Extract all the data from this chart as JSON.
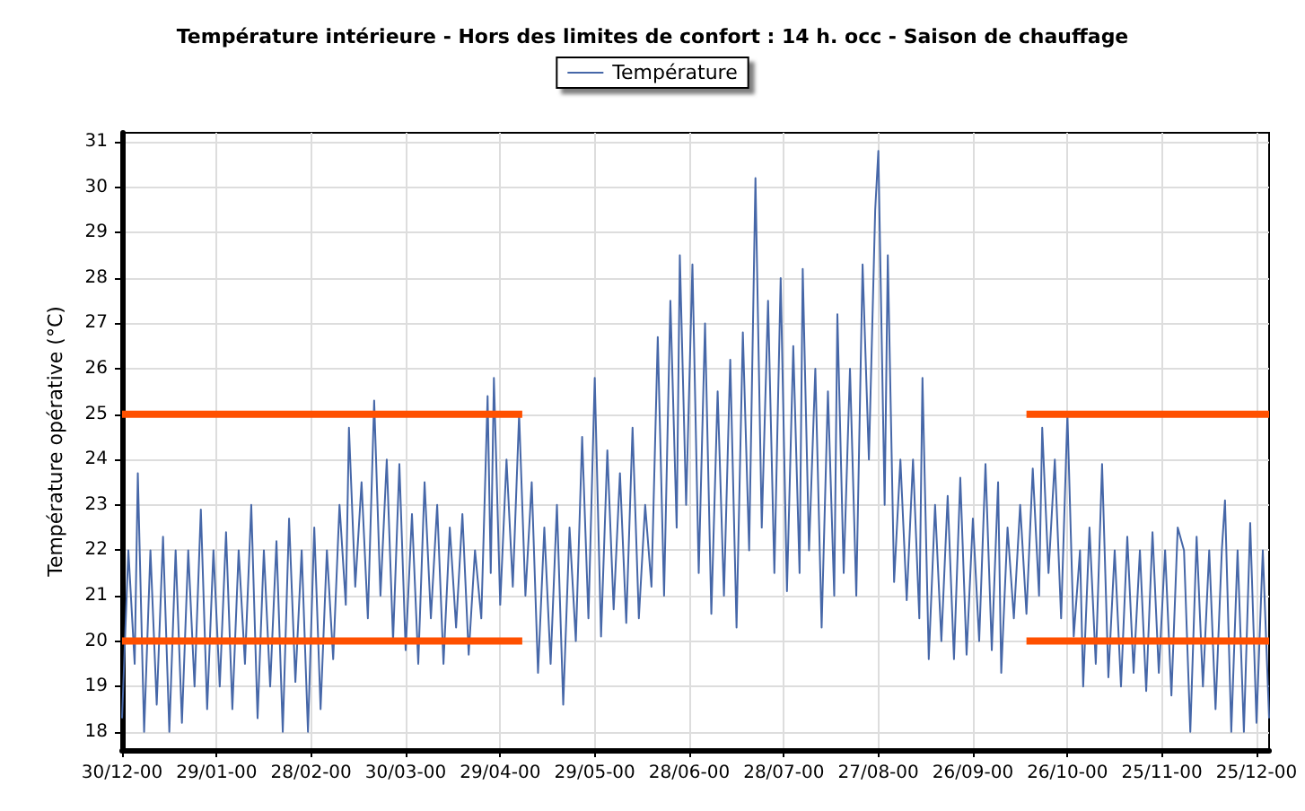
{
  "chart_data": {
    "type": "line",
    "title": "Température intérieure - Hors des limites de confort : 14 h. occ - Saison de chauffage",
    "ylabel": "Température opérative (°C)",
    "xlim": [
      "2000-12-30",
      "2001-12-29"
    ],
    "ylim": [
      17.6,
      31.2
    ],
    "xticks": [
      {
        "value": "2000-12-30",
        "label": "30/12-00"
      },
      {
        "value": "2001-01-29",
        "label": "29/01-00"
      },
      {
        "value": "2001-02-28",
        "label": "28/02-00"
      },
      {
        "value": "2001-03-30",
        "label": "30/03-00"
      },
      {
        "value": "2001-04-29",
        "label": "29/04-00"
      },
      {
        "value": "2001-05-29",
        "label": "29/05-00"
      },
      {
        "value": "2001-06-28",
        "label": "28/06-00"
      },
      {
        "value": "2001-07-28",
        "label": "28/07-00"
      },
      {
        "value": "2001-08-27",
        "label": "27/08-00"
      },
      {
        "value": "2001-09-26",
        "label": "26/09-00"
      },
      {
        "value": "2001-10-26",
        "label": "26/10-00"
      },
      {
        "value": "2001-11-25",
        "label": "25/11-00"
      },
      {
        "value": "2001-12-25",
        "label": "25/12-00"
      }
    ],
    "yticks": [
      18,
      19,
      20,
      21,
      22,
      23,
      24,
      25,
      26,
      27,
      28,
      29,
      30,
      31
    ],
    "grid": true,
    "legend": "top",
    "marker": "none",
    "series": [
      {
        "name": "Température",
        "color": "#4667a8",
        "x": [
          "2000-12-30",
          "2001-01-01",
          "2001-01-03",
          "2001-01-04",
          "2001-01-06",
          "2001-01-08",
          "2001-01-10",
          "2001-01-12",
          "2001-01-14",
          "2001-01-16",
          "2001-01-18",
          "2001-01-20",
          "2001-01-22",
          "2001-01-24",
          "2001-01-26",
          "2001-01-28",
          "2001-01-30",
          "2001-02-01",
          "2001-02-03",
          "2001-02-05",
          "2001-02-07",
          "2001-02-09",
          "2001-02-11",
          "2001-02-13",
          "2001-02-15",
          "2001-02-17",
          "2001-02-19",
          "2001-02-21",
          "2001-02-23",
          "2001-02-25",
          "2001-02-27",
          "2001-03-01",
          "2001-03-03",
          "2001-03-05",
          "2001-03-07",
          "2001-03-09",
          "2001-03-11",
          "2001-03-12",
          "2001-03-14",
          "2001-03-16",
          "2001-03-18",
          "2001-03-20",
          "2001-03-22",
          "2001-03-24",
          "2001-03-26",
          "2001-03-28",
          "2001-03-30",
          "2001-04-01",
          "2001-04-03",
          "2001-04-05",
          "2001-04-07",
          "2001-04-09",
          "2001-04-11",
          "2001-04-13",
          "2001-04-15",
          "2001-04-17",
          "2001-04-19",
          "2001-04-21",
          "2001-04-23",
          "2001-04-25",
          "2001-04-26",
          "2001-04-27",
          "2001-04-29",
          "2001-05-01",
          "2001-05-03",
          "2001-05-05",
          "2001-05-07",
          "2001-05-09",
          "2001-05-11",
          "2001-05-13",
          "2001-05-15",
          "2001-05-17",
          "2001-05-19",
          "2001-05-21",
          "2001-05-23",
          "2001-05-25",
          "2001-05-27",
          "2001-05-29",
          "2001-05-31",
          "2001-06-02",
          "2001-06-04",
          "2001-06-06",
          "2001-06-08",
          "2001-06-10",
          "2001-06-12",
          "2001-06-14",
          "2001-06-16",
          "2001-06-18",
          "2001-06-20",
          "2001-06-22",
          "2001-06-24",
          "2001-06-25",
          "2001-06-27",
          "2001-06-29",
          "2001-07-01",
          "2001-07-03",
          "2001-07-05",
          "2001-07-07",
          "2001-07-09",
          "2001-07-11",
          "2001-07-13",
          "2001-07-15",
          "2001-07-17",
          "2001-07-19",
          "2001-07-21",
          "2001-07-23",
          "2001-07-25",
          "2001-07-27",
          "2001-07-29",
          "2001-07-31",
          "2001-08-02",
          "2001-08-03",
          "2001-08-05",
          "2001-08-07",
          "2001-08-09",
          "2001-08-11",
          "2001-08-13",
          "2001-08-14",
          "2001-08-16",
          "2001-08-18",
          "2001-08-20",
          "2001-08-22",
          "2001-08-24",
          "2001-08-26",
          "2001-08-27",
          "2001-08-29",
          "2001-08-30",
          "2001-09-01",
          "2001-09-03",
          "2001-09-05",
          "2001-09-07",
          "2001-09-09",
          "2001-09-10",
          "2001-09-12",
          "2001-09-14",
          "2001-09-16",
          "2001-09-18",
          "2001-09-20",
          "2001-09-22",
          "2001-09-24",
          "2001-09-26",
          "2001-09-28",
          "2001-09-30",
          "2001-10-02",
          "2001-10-04",
          "2001-10-05",
          "2001-10-07",
          "2001-10-09",
          "2001-10-11",
          "2001-10-13",
          "2001-10-15",
          "2001-10-17",
          "2001-10-18",
          "2001-10-20",
          "2001-10-22",
          "2001-10-24",
          "2001-10-26",
          "2001-10-28",
          "2001-10-30",
          "2001-10-31",
          "2001-11-02",
          "2001-11-04",
          "2001-11-06",
          "2001-11-08",
          "2001-11-10",
          "2001-11-12",
          "2001-11-14",
          "2001-11-16",
          "2001-11-18",
          "2001-11-20",
          "2001-11-22",
          "2001-11-24",
          "2001-11-26",
          "2001-11-28",
          "2001-11-30",
          "2001-12-02",
          "2001-12-04",
          "2001-12-06",
          "2001-12-08",
          "2001-12-10",
          "2001-12-12",
          "2001-12-14",
          "2001-12-15",
          "2001-12-17",
          "2001-12-19",
          "2001-12-21",
          "2001-12-23",
          "2001-12-25",
          "2001-12-27",
          "2001-12-29"
        ],
        "values": [
          18.3,
          22,
          19.5,
          23.7,
          18,
          22,
          18.6,
          22.3,
          18,
          22,
          18.2,
          22,
          19,
          22.9,
          18.5,
          22,
          19,
          22.4,
          18.5,
          22,
          19.5,
          23,
          18.3,
          22,
          19,
          22.2,
          18,
          22.7,
          19.1,
          22,
          18,
          22.5,
          18.5,
          22,
          19.6,
          23,
          20.8,
          24.7,
          21.2,
          23.5,
          20.5,
          25.3,
          21,
          24,
          20,
          23.9,
          19.8,
          22.8,
          19.5,
          23.5,
          20.5,
          23,
          19.5,
          22.5,
          20.3,
          22.8,
          19.7,
          22,
          20.5,
          25.4,
          21.5,
          25.8,
          20.8,
          24,
          21.2,
          25,
          21,
          23.5,
          19.3,
          22.5,
          19.5,
          23,
          18.6,
          22.5,
          20,
          24.5,
          20.5,
          25.8,
          20.1,
          24.2,
          20.7,
          23.7,
          20.4,
          24.7,
          20.5,
          23,
          21.2,
          26.7,
          21,
          27.5,
          22.5,
          28.5,
          23,
          28.3,
          21.5,
          27,
          20.6,
          25.5,
          21,
          26.2,
          20.3,
          26.8,
          22,
          30.2,
          22.5,
          27.5,
          21.5,
          28,
          21.1,
          26.5,
          21.5,
          28.2,
          22,
          26,
          20.3,
          25.5,
          21,
          27.2,
          21.5,
          26,
          21,
          28.3,
          24,
          29.5,
          30.8,
          23,
          28.5,
          21.3,
          24,
          20.9,
          24,
          20.5,
          25.8,
          19.6,
          23,
          20,
          23.2,
          19.6,
          23.6,
          19.7,
          22.7,
          20,
          23.9,
          19.8,
          23.5,
          19.3,
          22.5,
          20.5,
          23,
          20.6,
          23.8,
          21,
          24.7,
          21.5,
          24,
          20.5,
          25,
          20.1,
          22,
          19,
          22.5,
          19.5,
          23.9,
          19.2,
          22,
          19,
          22.3,
          19.3,
          22,
          18.9,
          22.4,
          19.3,
          22,
          18.8,
          22.5,
          22,
          18,
          22.3,
          19,
          22,
          18.5,
          22,
          23.1,
          18,
          22,
          18,
          22.6,
          18.2,
          22,
          18.3
        ]
      },
      {
        "type": "line",
        "color": "#ff5000",
        "x": [
          "2000-12-30",
          "2001-05-06",
          "2001-07-18",
          "2001-10-13",
          "2001-12-29"
        ],
        "values": [
          25,
          25,
          null,
          25,
          25
        ]
      },
      {
        "type": "line",
        "color": "#ff5000",
        "x": [
          "2000-12-30",
          "2001-05-06",
          "2001-07-18",
          "2001-10-13",
          "2001-12-29"
        ],
        "values": [
          20,
          20,
          null,
          20,
          20
        ]
      }
    ]
  }
}
